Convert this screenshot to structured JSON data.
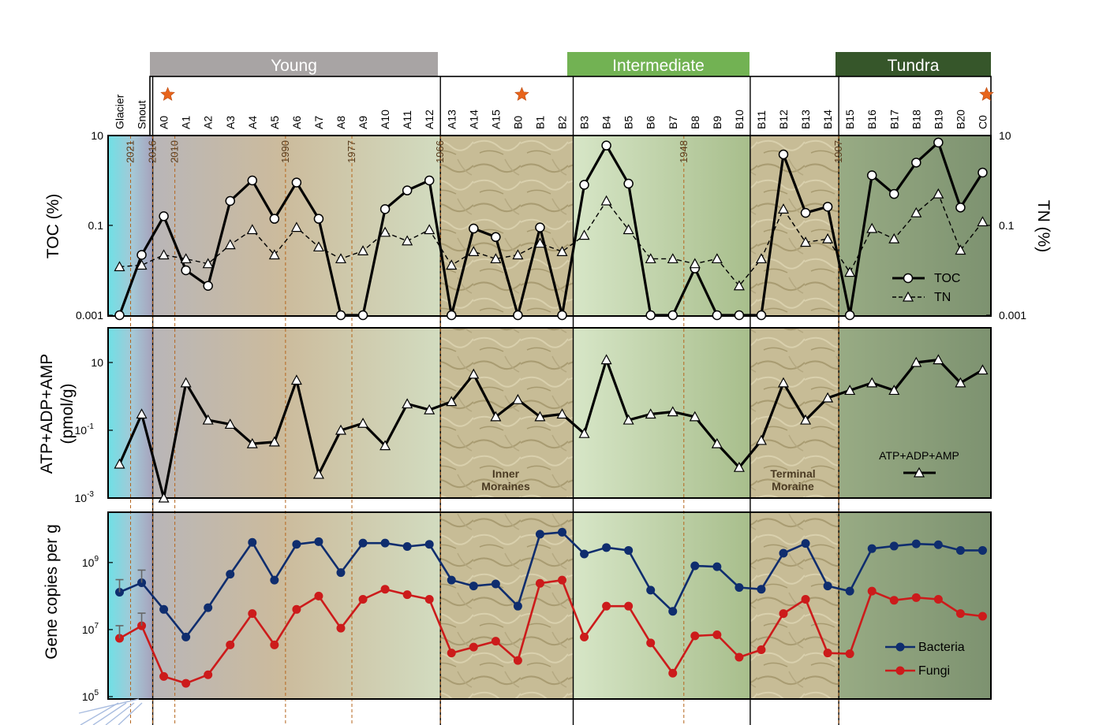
{
  "chart_data": {
    "type": "line",
    "stations": [
      "Glacier",
      "Snout",
      "A0",
      "A1",
      "A2",
      "A3",
      "A4",
      "A5",
      "A6",
      "A7",
      "A8",
      "A9",
      "A10",
      "A11",
      "A12",
      "A13",
      "A14",
      "A15",
      "B0",
      "B1",
      "B2",
      "B3",
      "B4",
      "B5",
      "B6",
      "B7",
      "B8",
      "B9",
      "B10",
      "B11",
      "B12",
      "B13",
      "B14",
      "B15",
      "B16",
      "B17",
      "B18",
      "B19",
      "B20",
      "C0"
    ],
    "reference_stations": [
      "A0",
      "B0",
      "C0"
    ],
    "zones": [
      {
        "label": "Young",
        "from": "A0",
        "to": "A12",
        "color": "#a8a4a4"
      },
      {
        "label": "Intermediate",
        "from": "B3",
        "to": "B10",
        "color": "#72b253"
      },
      {
        "label": "Tundra",
        "from": "B15",
        "to": "C0",
        "color": "#36562a"
      }
    ],
    "moraines": [
      {
        "label_lines": [
          "Inner",
          "Moraines"
        ],
        "from": "A13",
        "to": "B2"
      },
      {
        "label_lines": [
          "Terminal",
          "Moraine"
        ],
        "from": "B11",
        "to": "B14"
      }
    ],
    "year_markers": [
      {
        "label": "2021",
        "at": 0.5
      },
      {
        "label": "2016",
        "at": 1.5
      },
      {
        "label": "2010",
        "at": 2.5
      },
      {
        "label": "1990",
        "at": 7.5
      },
      {
        "label": "1977",
        "at": 10.5
      },
      {
        "label": "1966",
        "at": 14.5
      },
      {
        "label": "1948",
        "at": 25.5
      },
      {
        "label": "1907",
        "at": 32.5
      }
    ],
    "panels": [
      {
        "id": "toc_tn",
        "ylabel_left": "TOC (%)",
        "ylabel_right": "TN (%)",
        "yscale": "log",
        "ylim": [
          0.001,
          10
        ],
        "yticks_left": [
          {
            "v": 10,
            "label": "10"
          },
          {
            "v": 0.1,
            "label": "0.1"
          },
          {
            "v": 0.001,
            "label": "0.001"
          }
        ],
        "yticks_right": [
          {
            "v": 10,
            "label": "10"
          },
          {
            "v": 0.1,
            "label": "0.1"
          },
          {
            "v": 0.001,
            "label": "0.001"
          }
        ],
        "legend": [
          {
            "label": "TOC",
            "series": "TOC"
          },
          {
            "label": "TN",
            "series": "TN"
          }
        ],
        "series": [
          {
            "name": "TOC",
            "color": "#000000",
            "dash": false,
            "marker": "circle",
            "values": [
              0.001,
              0.022,
              0.16,
              0.01,
              0.0045,
              0.35,
              1.0,
              0.14,
              0.9,
              0.14,
              0.001,
              0.001,
              0.23,
              0.6,
              1.0,
              0.001,
              0.085,
              0.055,
              0.001,
              0.09,
              0.001,
              0.8,
              6.0,
              0.85,
              0.001,
              0.001,
              0.011,
              0.001,
              0.001,
              0.001,
              3.8,
              0.19,
              0.26,
              0.001,
              1.3,
              0.5,
              2.5,
              7.0,
              0.25,
              1.5
            ]
          },
          {
            "name": "TN",
            "color": "#000000",
            "dash": true,
            "marker": "triangle",
            "values": [
              0.012,
              0.013,
              0.022,
              0.018,
              0.014,
              0.037,
              0.08,
              0.022,
              0.09,
              0.033,
              0.018,
              0.027,
              0.07,
              0.045,
              0.08,
              0.013,
              0.026,
              0.018,
              0.022,
              0.04,
              0.026,
              0.06,
              0.35,
              0.08,
              0.018,
              0.018,
              0.014,
              0.018,
              0.0045,
              0.018,
              0.23,
              0.042,
              0.05,
              0.009,
              0.085,
              0.05,
              0.19,
              0.5,
              0.028,
              0.12
            ]
          }
        ]
      },
      {
        "id": "atp",
        "ylabel_lines": [
          "ATP+ADP+AMP",
          "(pmol/g)"
        ],
        "yscale": "log",
        "ylim": [
          0.001,
          100
        ],
        "yticks_left": [
          {
            "v": 10,
            "label": "10"
          },
          {
            "v": 0.1,
            "label": "10",
            "sup": "-1"
          },
          {
            "v": 0.001,
            "label": "10",
            "sup": "-3"
          }
        ],
        "legend": [
          {
            "label": "ATP+ADP+AMP",
            "series": "ATP+ADP+AMP"
          }
        ],
        "series": [
          {
            "name": "ATP+ADP+AMP",
            "color": "#000000",
            "dash": false,
            "marker": "triangle",
            "values": [
              0.01,
              0.3,
              0.001,
              2.5,
              0.2,
              0.15,
              0.04,
              0.045,
              3.0,
              0.005,
              0.1,
              0.16,
              0.035,
              0.6,
              0.4,
              0.7,
              4.5,
              0.25,
              0.8,
              0.25,
              0.3,
              0.08,
              12,
              0.2,
              0.3,
              0.35,
              0.25,
              0.04,
              0.008,
              0.05,
              2.5,
              0.2,
              0.9,
              1.5,
              2.5,
              1.5,
              10,
              12,
              2.5,
              6.0
            ]
          }
        ]
      },
      {
        "id": "genes",
        "ylabel_left": "Gene copies per g",
        "yscale": "log",
        "ylim": [
          100000,
          30000000000
        ],
        "yticks_left": [
          {
            "v": 1000000000,
            "label": "10",
            "sup": "9"
          },
          {
            "v": 10000000,
            "label": "10",
            "sup": "7"
          },
          {
            "v": 100000,
            "label": "10",
            "sup": "5"
          }
        ],
        "legend": [
          {
            "label": "Bacteria",
            "series": "Bacteria"
          },
          {
            "label": "Fungi",
            "series": "Fungi"
          }
        ],
        "series": [
          {
            "name": "Bacteria",
            "color": "#0f2d6e",
            "dash": false,
            "marker": "dot",
            "values": [
              130000000,
              250000000,
              40000000,
              6000000,
              45000000,
              450000000,
              4000000000,
              300000000,
              3500000000,
              4200000000,
              500000000,
              3800000000,
              3800000000,
              3000000000,
              3500000000,
              300000000,
              200000000,
              230000000,
              50000000,
              7000000000,
              8000000000,
              1800000000,
              2800000000,
              2300000000,
              150000000,
              35000000,
              800000000,
              750000000,
              180000000,
              160000000,
              1900000000,
              3700000000,
              200000000,
              140000000,
              2600000000,
              3100000000,
              3600000000,
              3400000000,
              2300000000,
              2300000000
            ]
          },
          {
            "name": "Fungi",
            "color": "#cc1b1b",
            "dash": false,
            "marker": "dot",
            "values": [
              5500000,
              13000000,
              400000,
              250000,
              450000,
              3500000,
              30000000,
              3500000,
              40000000,
              100000000,
              11000000,
              80000000,
              160000000,
              110000000,
              80000000,
              2000000,
              3000000,
              4500000,
              1200000,
              240000000,
              300000000,
              6000000,
              50000000,
              50000000,
              4000000,
              500000,
              6500000,
              7000000,
              1500000,
              2500000,
              30000000,
              80000000,
              2000000,
              1900000,
              140000000,
              75000000,
              90000000,
              80000000,
              30000000,
              25000000
            ]
          }
        ]
      }
    ]
  }
}
